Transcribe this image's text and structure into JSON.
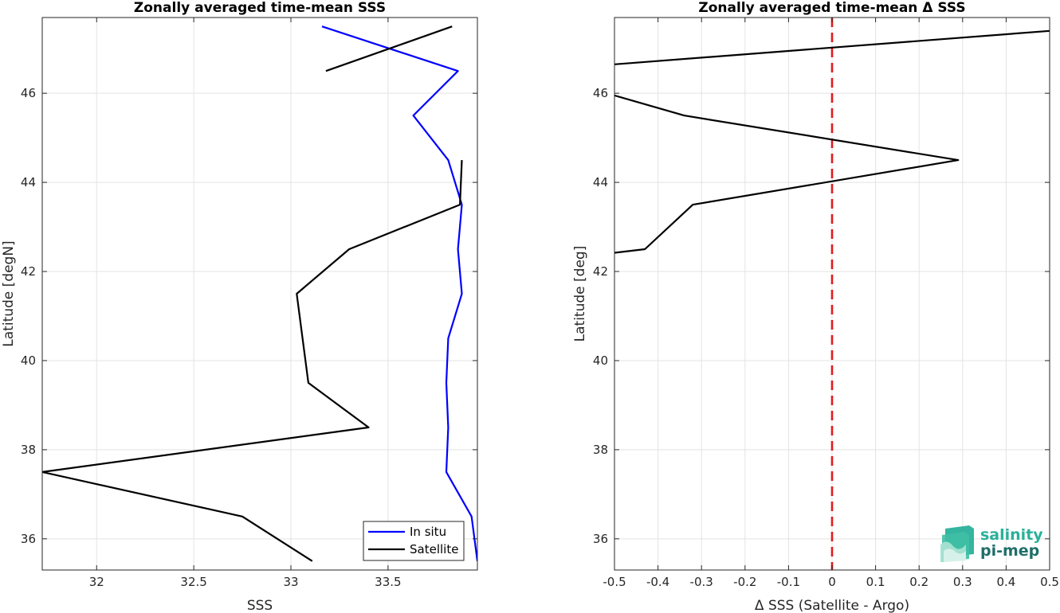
{
  "chart_data": [
    {
      "type": "line",
      "title": "Zonally averaged time-mean SSS",
      "xlabel": "SSS",
      "ylabel": "Latitude [degN]",
      "xlim": [
        31.72,
        33.96
      ],
      "ylim": [
        35.3,
        47.7
      ],
      "xticks": [
        32,
        32.5,
        33,
        33.5
      ],
      "xticklabels": [
        "32",
        "32.5",
        "33",
        "33.5"
      ],
      "yticks": [
        36,
        38,
        40,
        42,
        44,
        46
      ],
      "yticklabels": [
        "36",
        "38",
        "40",
        "42",
        "44",
        "46"
      ],
      "grid": true,
      "legend": {
        "placement": "bottom-right"
      },
      "series": [
        {
          "name": "In situ",
          "color": "#0000ff",
          "points": [
            [
              33.16,
              47.5
            ],
            [
              33.86,
              46.5
            ],
            [
              33.63,
              45.5
            ],
            [
              33.81,
              44.5
            ],
            [
              33.88,
              43.5
            ],
            [
              33.86,
              42.5
            ],
            [
              33.88,
              41.5
            ],
            [
              33.81,
              40.5
            ],
            [
              33.8,
              39.5
            ],
            [
              33.81,
              38.5
            ],
            [
              33.8,
              37.5
            ],
            [
              33.93,
              36.5
            ],
            [
              33.96,
              35.5
            ]
          ]
        },
        {
          "name": "Satellite",
          "color": "#000000",
          "segments": [
            [
              [
                33.18,
                46.5
              ],
              [
                33.83,
                47.5
              ]
            ],
            [
              [
                33.88,
                44.5
              ],
              [
                33.87,
                43.5
              ],
              [
                33.3,
                42.5
              ],
              [
                33.03,
                41.5
              ],
              [
                33.09,
                39.5
              ],
              [
                33.4,
                38.5
              ],
              [
                31.72,
                37.5
              ],
              [
                32.75,
                36.5
              ],
              [
                33.11,
                35.5
              ]
            ]
          ]
        }
      ]
    },
    {
      "type": "line",
      "title": "Zonally averaged time-mean Δ SSS",
      "xlabel": "Δ SSS (Satellite - Argo)",
      "ylabel": "Latitude [deg]",
      "xlim": [
        -0.5,
        0.5
      ],
      "ylim": [
        35.3,
        47.7
      ],
      "xticks": [
        -0.5,
        -0.4,
        -0.3,
        -0.2,
        -0.1,
        0,
        0.1,
        0.2,
        0.3,
        0.4,
        0.5
      ],
      "xticklabels": [
        "-0.5",
        "-0.4",
        "-0.3",
        "-0.2",
        "-0.1",
        "0",
        "0.1",
        "0.2",
        "0.3",
        "0.4",
        "0.5"
      ],
      "yticks": [
        36,
        38,
        40,
        42,
        44,
        46
      ],
      "yticklabels": [
        "36",
        "38",
        "40",
        "42",
        "44",
        "46"
      ],
      "grid": true,
      "reference_line": {
        "x": 0,
        "color": "#e31a1c",
        "style": "dashed"
      },
      "series": [
        {
          "color": "#000000",
          "segments": [
            [
              [
                -0.5,
                46.65
              ],
              [
                0.5,
                47.4
              ]
            ],
            [
              [
                -0.5,
                45.95
              ],
              [
                -0.34,
                45.5
              ],
              [
                0.29,
                44.5
              ],
              [
                -0.32,
                43.5
              ],
              [
                -0.43,
                42.5
              ],
              [
                -0.5,
                42.42
              ]
            ]
          ]
        }
      ]
    }
  ],
  "logo": {
    "line1": "salinity",
    "line2": "pi-mep",
    "color1": "#2ab09a",
    "color2": "#1f6e6a"
  }
}
